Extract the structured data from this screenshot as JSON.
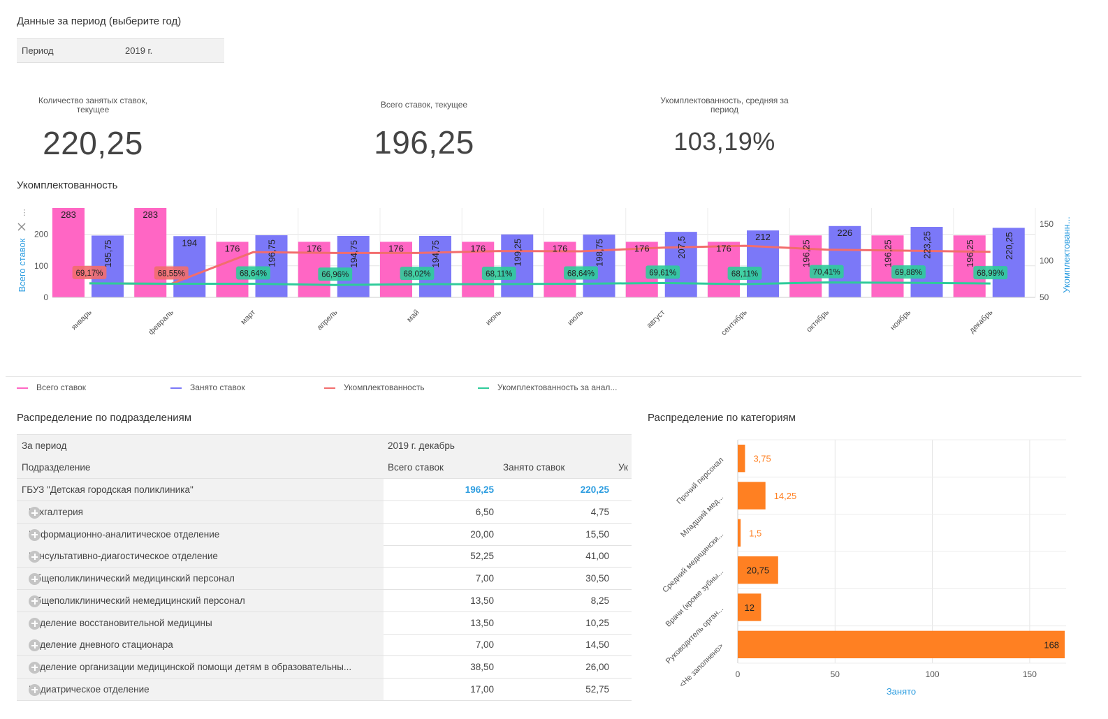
{
  "filter": {
    "title": "Данные за период (выберите год)",
    "label": "Период",
    "value": "2019 г."
  },
  "kpis": [
    {
      "label_line1": "Количество занятых ставок,",
      "label_line2": "текущее",
      "value": "220,25"
    },
    {
      "label_line1": "Всего ставок, текущее",
      "label_line2": "",
      "value": "196,25"
    },
    {
      "label_line1": "Укомплектованность, средняя за",
      "label_line2": "период",
      "value": "103,19%"
    }
  ],
  "main_chart_title": "Укомплектованность",
  "legend": [
    {
      "label": "Всего ставок",
      "color": "#ff66c4"
    },
    {
      "label": "Занято ставок",
      "color": "#7b78f8"
    },
    {
      "label": "Укомплектованность",
      "color": "#f26d6d"
    },
    {
      "label": "Укомплектованность за анал...",
      "color": "#2ecc9a"
    }
  ],
  "dept_title": "Распределение по подразделениям",
  "pivot": {
    "period_label": "За период",
    "period_value": "2019 г. декабрь",
    "header_name": "Подразделение",
    "header_total": "Всего ставок",
    "header_occupied": "Занято ставок",
    "header_third": "Ук",
    "total_row": {
      "name": "ГБУЗ \"Детская городская поликлиника\"",
      "total": "196,25",
      "occupied": "220,25"
    },
    "rows": [
      {
        "name": "Бухгалтерия",
        "total": "6,50",
        "occupied": "4,75"
      },
      {
        "name": "Информационно-аналитическое отделение",
        "total": "20,00",
        "occupied": "15,50"
      },
      {
        "name": "Консультативно-диагостическое отделение",
        "total": "52,25",
        "occupied": "41,00"
      },
      {
        "name": "Общеполиклинический медицинский персонал",
        "total": "7,00",
        "occupied": "30,50"
      },
      {
        "name": "Общеполиклинический немедицинский персонал",
        "total": "13,50",
        "occupied": "8,25"
      },
      {
        "name": "Отделение восстановительной медицины",
        "total": "13,50",
        "occupied": "10,25"
      },
      {
        "name": "Отделение дневного стационара",
        "total": "7,00",
        "occupied": "14,50"
      },
      {
        "name": "Отделение организации медицинской помощи детям в образовательны...",
        "total": "38,50",
        "occupied": "26,00"
      },
      {
        "name": "Педиатрическое отделение",
        "total": "17,00",
        "occupied": "52,75"
      }
    ]
  },
  "cat_title": "Распределение по категориям",
  "chart_data": [
    {
      "type": "bar",
      "title": "Укомплектованность",
      "categories": [
        "январь",
        "февраль",
        "март",
        "апрель",
        "май",
        "июнь",
        "июль",
        "август",
        "сентябрь",
        "октябрь",
        "ноябрь",
        "декабрь"
      ],
      "ylabel": "Всего ставок",
      "y2label": "Укомплектованн...",
      "ylim": [
        0,
        283
      ],
      "y2lim": [
        50,
        172
      ],
      "yticks": [
        "0",
        "100",
        "200"
      ],
      "y2ticks": [
        "50",
        "100",
        "150"
      ],
      "series": [
        {
          "name": "Всего ставок",
          "kind": "bar",
          "axis": "left",
          "values": [
            283,
            283,
            176,
            176,
            176,
            176,
            176,
            176,
            176,
            196.25,
            196.25,
            196.25
          ],
          "labels": [
            "283",
            "283",
            "176",
            "176",
            "176",
            "176",
            "176",
            "176",
            "176",
            "196,25",
            "196,25",
            "196,25"
          ]
        },
        {
          "name": "Занято ставок",
          "kind": "bar",
          "axis": "left",
          "values": [
            195.75,
            194,
            196.75,
            194.75,
            194.75,
            199.25,
            198.75,
            207.5,
            212,
            226,
            223.25,
            220.25
          ],
          "labels": [
            "195,75",
            "194",
            "196,75",
            "194,75",
            "194,75",
            "199,25",
            "198,75",
            "207,5",
            "212",
            "226",
            "223,25",
            "220,25"
          ]
        },
        {
          "name": "Укомплектованность",
          "kind": "line",
          "axis": "right",
          "values": [
            69.17,
            68.55,
            111.79,
            110.65,
            110.65,
            113.21,
            112.93,
            117.9,
            120.45,
            115.16,
            113.76,
            112.23
          ]
        },
        {
          "name": "Укомплектованность за анал...",
          "kind": "line",
          "axis": "right",
          "values": [
            69.17,
            68.55,
            68.64,
            66.96,
            68.02,
            68.11,
            68.64,
            69.61,
            68.11,
            70.41,
            69.88,
            68.99
          ],
          "labels": [
            "69,17%",
            "68,55%",
            "68,64%",
            "66,96%",
            "68,02%",
            "68,11%",
            "68,64%",
            "69,61%",
            "68,11%",
            "70,41%",
            "69,88%",
            "68,99%"
          ]
        }
      ],
      "legend_position": "bottom",
      "grid": true
    },
    {
      "type": "bar",
      "orientation": "horizontal",
      "title": "Распределение по категориям",
      "categories": [
        "Прочий персонал",
        "Младший мед...",
        "Средний медицински...",
        "Врачи (кроме зубны...",
        "Руководитель орган...",
        "<Не заполнено>"
      ],
      "values": [
        3.75,
        14.25,
        1.5,
        20.75,
        12,
        168
      ],
      "labels": [
        "3,75",
        "14,25",
        "1,5",
        "20,75",
        "12",
        "168"
      ],
      "xlabel": "Занято",
      "xlim": [
        0,
        168.7
      ],
      "xticks": [
        "0",
        "50",
        "100",
        "150"
      ],
      "color": "#ff8022",
      "grid": true
    }
  ]
}
